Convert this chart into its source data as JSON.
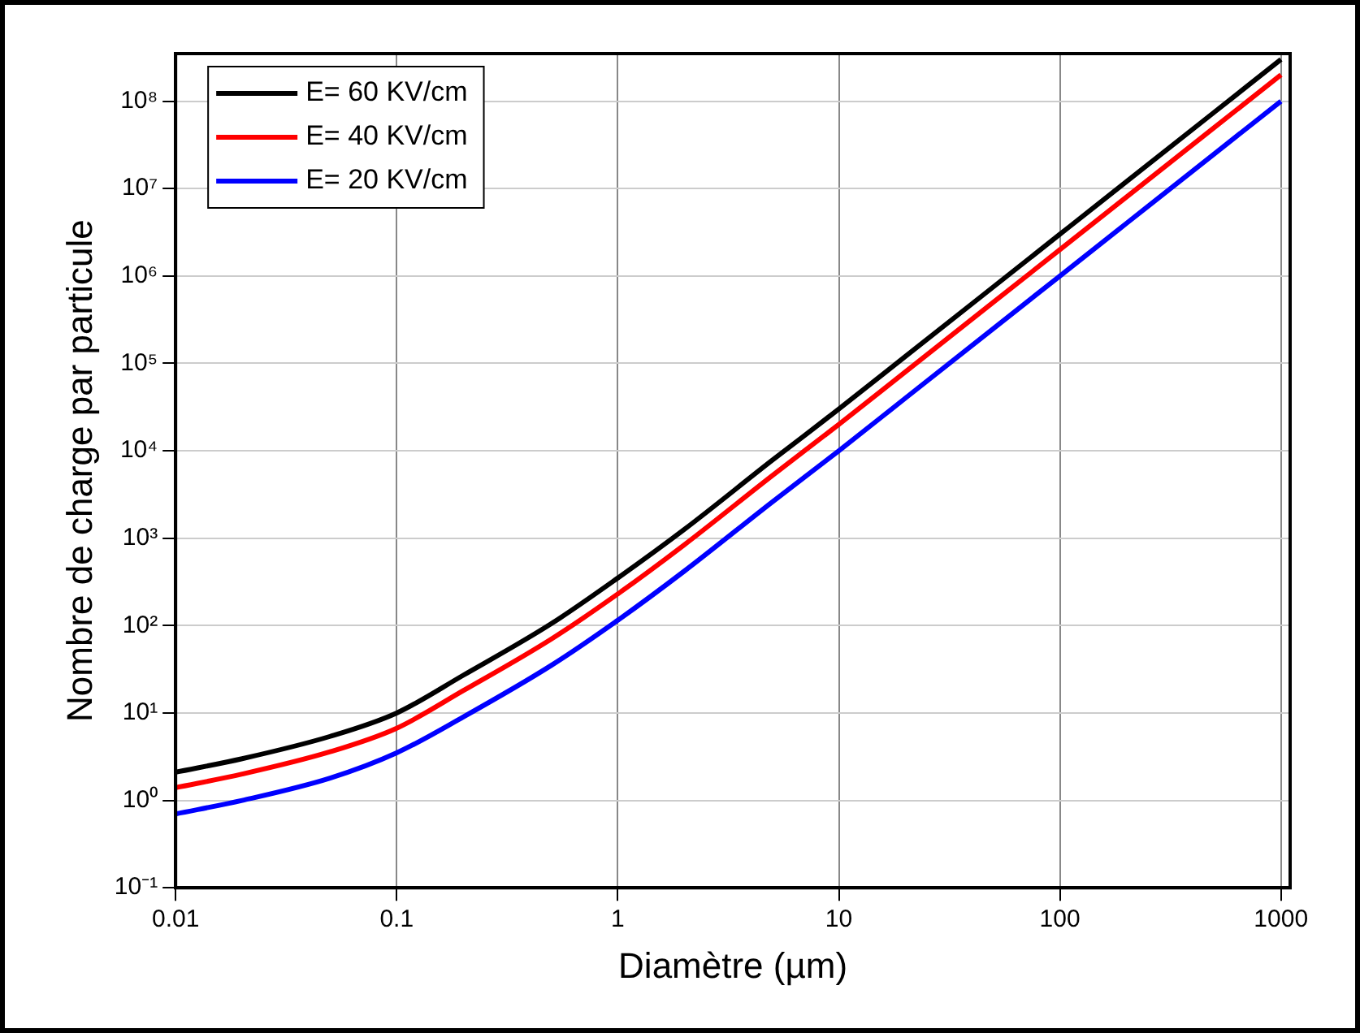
{
  "chart_data": {
    "type": "line",
    "xlabel": "Diamètre (µm)",
    "ylabel": "Nombre de charge par particule",
    "x": [
      0.01,
      0.02,
      0.05,
      0.1,
      0.2,
      0.5,
      1,
      2,
      5,
      10,
      20,
      50,
      100,
      200,
      500,
      1000
    ],
    "series": [
      {
        "name": "E= 60 KV/cm",
        "color": "#000000",
        "values": [
          2.1,
          3.0,
          5.4,
          10,
          27,
          105,
          350,
          1260,
          7800,
          30000,
          120000,
          750000,
          3000000,
          12000000,
          75000000,
          300000000
        ]
      },
      {
        "name": "E= 40 KV/cm",
        "color": "#ff0000",
        "values": [
          1.4,
          2.0,
          3.6,
          6.7,
          18,
          70,
          230,
          840,
          5200,
          20000,
          80000,
          500000,
          2000000,
          8000000,
          50000000,
          200000000
        ]
      },
      {
        "name": "E= 20 KV/cm",
        "color": "#0000ff",
        "values": [
          0.7,
          1.0,
          1.8,
          3.5,
          9,
          35,
          115,
          420,
          2600,
          10000,
          40000,
          250000,
          1000000,
          4000000,
          25000000,
          100000000
        ]
      }
    ],
    "log": "xy",
    "xlim": [
      0.01,
      1100
    ],
    "ylim": [
      0.1,
      350000000
    ],
    "xticks": [
      0.01,
      0.1,
      1,
      10,
      100,
      1000
    ],
    "yticks": [
      {
        "value": 0.1,
        "label": "10⁻¹"
      },
      {
        "value": 1,
        "label": "10⁰"
      },
      {
        "value": 10,
        "label": "10¹"
      },
      {
        "value": 100,
        "label": "10²"
      },
      {
        "value": 1000,
        "label": "10³"
      },
      {
        "value": 10000,
        "label": "10⁴"
      },
      {
        "value": 100000,
        "label": "10⁵"
      },
      {
        "value": 1000000,
        "label": "10⁶"
      },
      {
        "value": 10000000,
        "label": "10⁷"
      },
      {
        "value": 100000000,
        "label": "10⁸"
      }
    ],
    "grid": true,
    "legend": "top left",
    "marker": "none",
    "line_style": "solid"
  }
}
